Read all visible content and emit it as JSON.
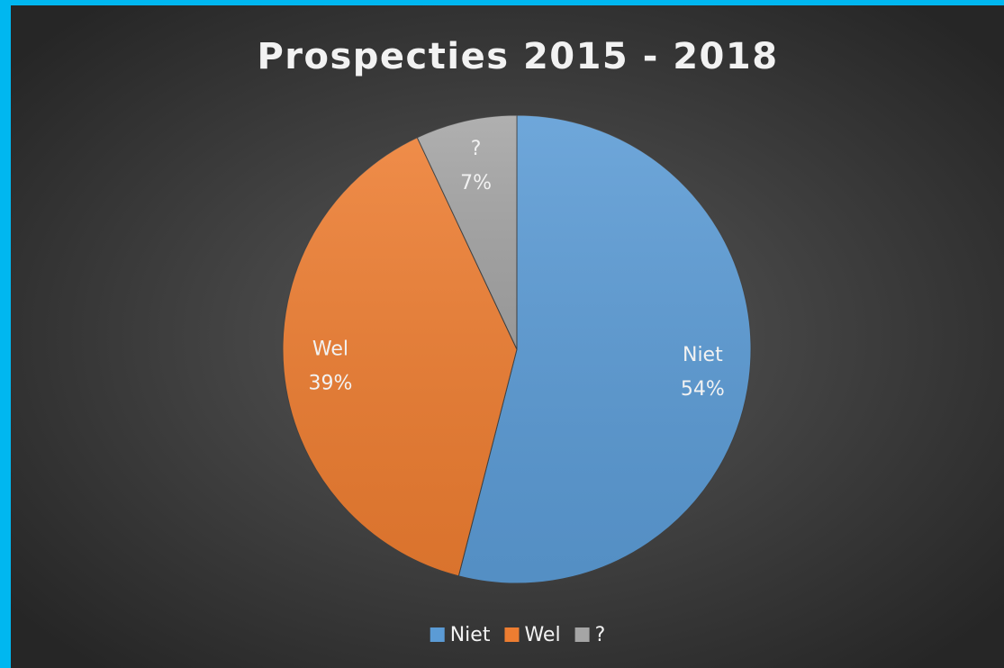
{
  "chart_data": {
    "type": "pie",
    "title": "Prospecties 2015 - 2018",
    "categories": [
      "Niet",
      "Wel",
      "?"
    ],
    "values": [
      54,
      39,
      7
    ],
    "value_labels": [
      "54%",
      "39%",
      "7%"
    ],
    "colors": [
      "#5b9bd5",
      "#ed7d31",
      "#a5a5a5"
    ],
    "legend": "bottom"
  }
}
